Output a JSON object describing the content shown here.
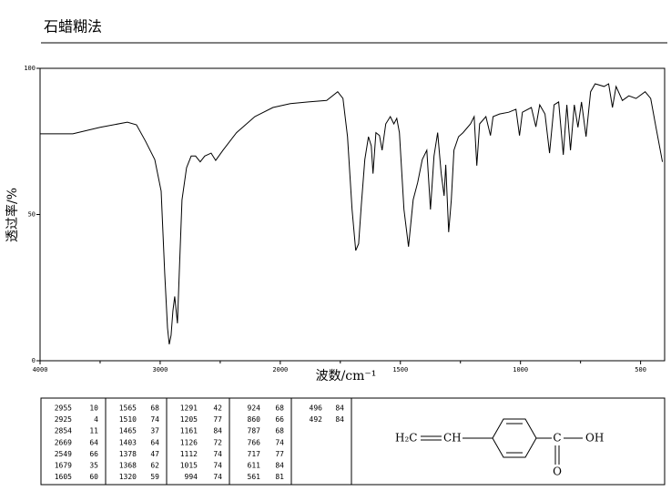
{
  "chart_data": {
    "type": "line",
    "title": "石蜡糊法",
    "xlabel": "波数/cm⁻¹",
    "ylabel": "透过率/%",
    "color": "#000000",
    "xlim": [
      4000,
      400
    ],
    "xbreak": 2000,
    "xticks": [
      4000,
      3000,
      2000,
      1500,
      1000,
      500
    ],
    "xminor_ticks": [
      3500,
      2500,
      1750,
      1250,
      750
    ],
    "ylim": [
      0,
      100
    ],
    "yticks": [
      0,
      50,
      100
    ],
    "x": [
      4000,
      3727,
      3500,
      3273,
      3197,
      3121,
      3045,
      2992,
      2962,
      2939,
      2924,
      2909,
      2894,
      2879,
      2856,
      2841,
      2818,
      2780,
      2742,
      2705,
      2667,
      2629,
      2576,
      2538,
      2477,
      2364,
      2212,
      2061,
      1958,
      1883,
      1807,
      1761,
      1739,
      1720,
      1701,
      1686,
      1674,
      1663,
      1648,
      1633,
      1621,
      1614,
      1602,
      1587,
      1576,
      1561,
      1542,
      1527,
      1515,
      1504,
      1485,
      1466,
      1447,
      1428,
      1409,
      1390,
      1375,
      1360,
      1345,
      1330,
      1318,
      1311,
      1299,
      1288,
      1277,
      1258,
      1239,
      1208,
      1193,
      1182,
      1170,
      1144,
      1125,
      1114,
      1087,
      1049,
      1019,
      1004,
      992,
      955,
      936,
      920,
      898,
      879,
      860,
      841,
      822,
      807,
      792,
      776,
      761,
      746,
      727,
      708,
      689,
      652,
      633,
      617,
      602,
      576,
      549,
      519,
      481,
      458,
      436,
      409
    ],
    "values": [
      77.6,
      77.6,
      79.8,
      81.6,
      80.7,
      75,
      68.8,
      58,
      30,
      11.2,
      5.6,
      8.7,
      17,
      22,
      12.8,
      30,
      55,
      66,
      70,
      70,
      68,
      70,
      71,
      68.5,
      72,
      78,
      83.5,
      86.6,
      87.9,
      88.5,
      89,
      92,
      89.7,
      76.6,
      51.7,
      37.7,
      40,
      53,
      68.8,
      76.6,
      73.5,
      64,
      78,
      77,
      72,
      81,
      83.5,
      81,
      82.9,
      78,
      51.7,
      39,
      55,
      61,
      68.8,
      72,
      51.7,
      70,
      78,
      64,
      56.4,
      67,
      44,
      55,
      72,
      76.6,
      78,
      81,
      83.5,
      66.7,
      81,
      83.5,
      77,
      83.5,
      84.4,
      85,
      86,
      77,
      85,
      86.6,
      80,
      87.5,
      84.4,
      71,
      87.5,
      88.5,
      70.4,
      87.5,
      72,
      87.5,
      79.8,
      88.5,
      76.6,
      92,
      94.7,
      93.8,
      94.7,
      86.6,
      93.8,
      89,
      90.6,
      89.7,
      92,
      89.7,
      79.8,
      68
    ]
  },
  "peak_table": {
    "columns": [
      [
        [
          2955,
          10
        ],
        [
          2925,
          4
        ],
        [
          2854,
          11
        ],
        [
          2669,
          64
        ],
        [
          2549,
          66
        ],
        [
          1679,
          35
        ],
        [
          1605,
          60
        ]
      ],
      [
        [
          1565,
          68
        ],
        [
          1510,
          74
        ],
        [
          1465,
          37
        ],
        [
          1403,
          64
        ],
        [
          1378,
          47
        ],
        [
          1368,
          62
        ],
        [
          1320,
          59
        ]
      ],
      [
        [
          1291,
          42
        ],
        [
          1205,
          77
        ],
        [
          1161,
          84
        ],
        [
          1126,
          72
        ],
        [
          1112,
          74
        ],
        [
          1015,
          74
        ],
        [
          994,
          74
        ]
      ],
      [
        [
          924,
          68
        ],
        [
          860,
          66
        ],
        [
          787,
          68
        ],
        [
          766,
          74
        ],
        [
          717,
          77
        ],
        [
          611,
          84
        ],
        [
          561,
          81
        ]
      ],
      [
        [
          496,
          84
        ],
        [
          492,
          84
        ]
      ]
    ]
  },
  "structure": {
    "left_group": "H₂C",
    "vinyl_ch": "CH",
    "carbon": "C",
    "hydroxyl": "OH",
    "oxygen": "O"
  }
}
